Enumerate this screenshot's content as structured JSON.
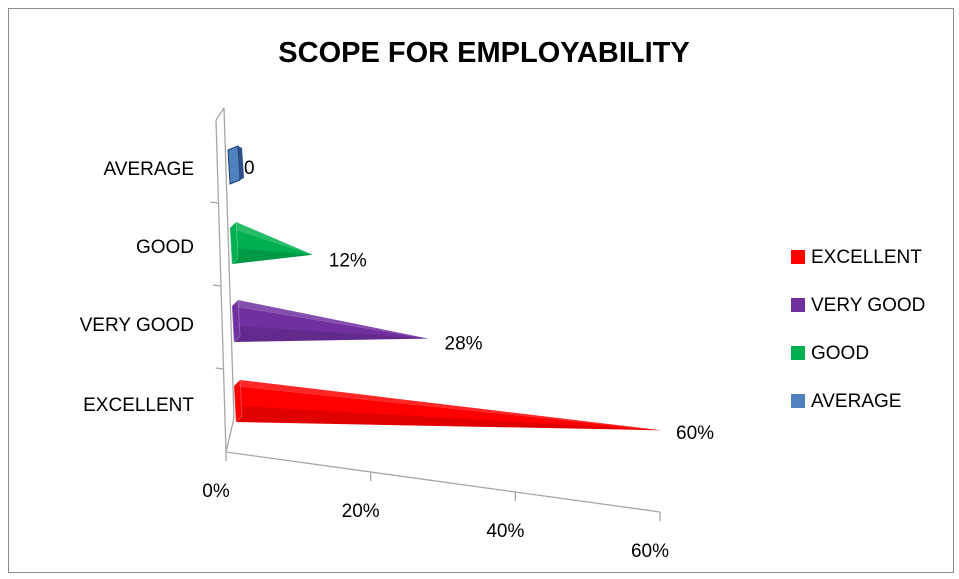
{
  "chart_data": {
    "type": "bar",
    "title": "SCOPE FOR EMPLOYABILITY",
    "categories": [
      "AVERAGE",
      "GOOD",
      "VERY GOOD",
      "EXCELLENT"
    ],
    "values": [
      0,
      12,
      28,
      60
    ],
    "value_labels": [
      "0",
      "12%",
      "28%",
      "60%"
    ],
    "colors": [
      "#4f81bd",
      "#00b050",
      "#7030a0",
      "#ff0000"
    ],
    "x_ticks": [
      0,
      20,
      40,
      60
    ],
    "x_tick_labels": [
      "0%",
      "20%",
      "40%",
      "60%"
    ],
    "xlim": [
      0,
      60
    ],
    "legend": {
      "placement": "right",
      "entries": [
        {
          "name": "EXCELLENT",
          "color": "#ff0000"
        },
        {
          "name": "VERY GOOD",
          "color": "#7030a0"
        },
        {
          "name": "GOOD",
          "color": "#00b050"
        },
        {
          "name": "AVERAGE",
          "color": "#4f81bd"
        }
      ]
    },
    "style": "3d-pyramid-bars"
  }
}
